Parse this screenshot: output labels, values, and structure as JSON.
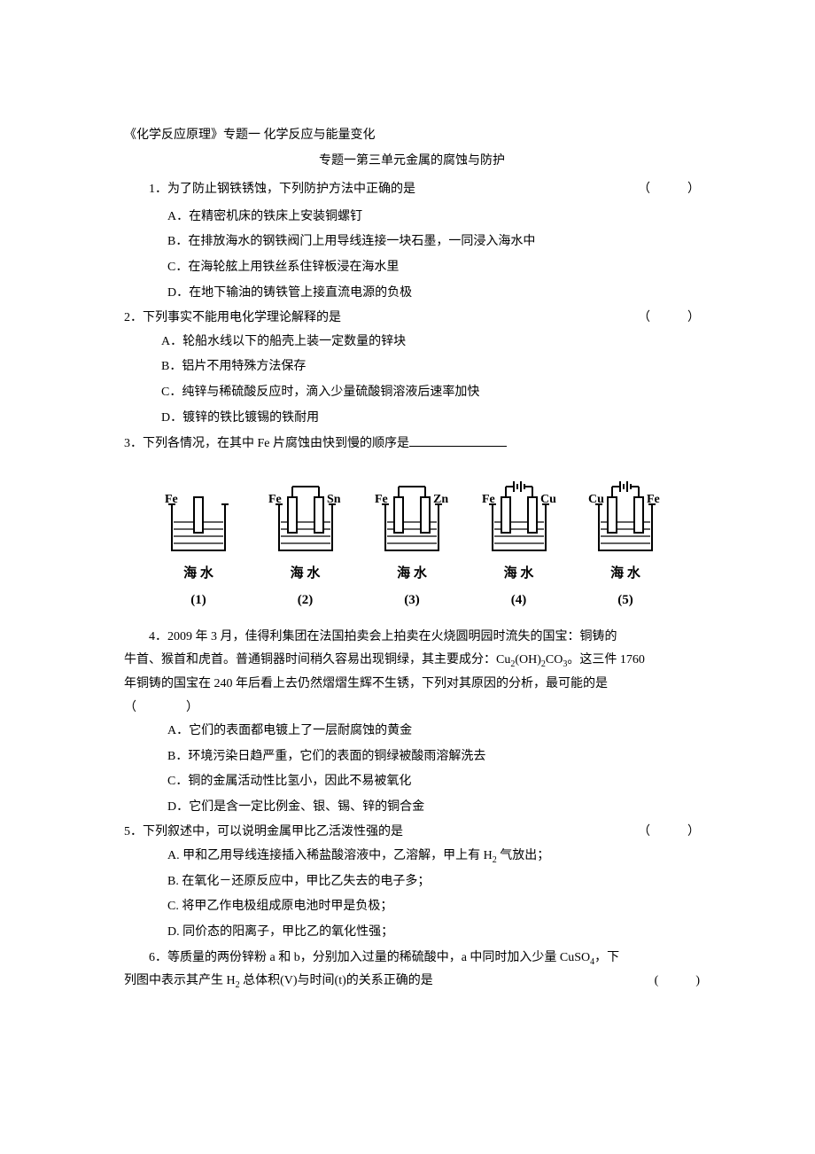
{
  "title": "《化学反应原理》专题一 化学反应与能量变化",
  "subtitle": "专题一第三单元金属的腐蚀与防护",
  "paren_marker": "（　　　）",
  "paren_marker_alt": "(　　　)",
  "q1": {
    "stem": "1．为了防止钢铁锈蚀，下列防护方法中正确的是",
    "A": "A．在精密机床的铁床上安装铜螺钉",
    "B": "B．在排放海水的钢铁阀门上用导线连接一块石墨，一同浸入海水中",
    "C": "C．在海轮舷上用铁丝系住锌板浸在海水里",
    "D": "D．在地下输油的铸铁管上接直流电源的负极"
  },
  "q2": {
    "stem": "2．下列事实不能用电化学理论解释的是",
    "A": "A．轮船水线以下的船壳上装一定数量的锌块",
    "B": "B．铝片不用特殊方法保存",
    "C": "C．纯锌与稀硫酸反应时，滴入少量硫酸铜溶液后速率加快",
    "D": "D．镀锌的铁比镀锡的铁耐用"
  },
  "q3": {
    "stem_pre": "3．下列各情况，在其中 Fe 片腐蚀由快到慢的顺序是"
  },
  "figures": {
    "seawater_label": "海 水",
    "items": [
      {
        "left": "Fe",
        "right": "",
        "has_battery": false,
        "num": "(1)"
      },
      {
        "left": "Fe",
        "right": "Sn",
        "has_battery": false,
        "num": "(2)"
      },
      {
        "left": "Fe",
        "right": "Zn",
        "has_battery": false,
        "num": "(3)"
      },
      {
        "left": "Fe",
        "right": "Cu",
        "has_battery": true,
        "num": "(4)"
      },
      {
        "left": "Cu",
        "right": "Fe",
        "has_battery": true,
        "num": "(5)"
      }
    ],
    "colors": {
      "stroke": "#000000",
      "fill": "#ffffff"
    }
  },
  "q4": {
    "line1": "　　4．2009 年 3 月，佳得利集团在法国拍卖会上拍卖在火烧圆明园时流失的国宝：铜铸的",
    "line2_pre": "牛首、猴首和虎首。普通铜器时间稍久容易出现铜绿，其主要成分：Cu",
    "line2_mid": "(OH)",
    "line2_co": "CO",
    "line2_post": "。这三件 1760",
    "line3": "年铜铸的国宝在 240 年后看上去仍然熠熠生辉不生锈，下列对其原因的分析，最可能的是",
    "line4": "（　　　　）",
    "A": "A．它们的表面都电镀上了一层耐腐蚀的黄金",
    "B": "B．环境污染日趋严重，它们的表面的铜绿被酸雨溶解洗去",
    "C": "C．铜的金属活动性比氢小，因此不易被氧化",
    "D": "D．它们是含一定比例金、银、锡、锌的铜合金"
  },
  "q5": {
    "stem": "5．下列叙述中，可以说明金属甲比乙活泼性强的是",
    "A_pre": "A. 甲和乙用导线连接插入稀盐酸溶液中，乙溶解，甲上有 H",
    "A_post": " 气放出；",
    "B": "B. 在氧化－还原反应中，甲比乙失去的电子多；",
    "C": "C. 将甲乙作电极组成原电池时甲是负极；",
    "D": "D. 同价态的阳离子，甲比乙的氧化性强；"
  },
  "q6": {
    "line1_pre": "　　6．等质量的两份锌粉 a 和 b，分别加入过量的稀硫酸中，a 中同时加入少量 CuSO",
    "line1_post": "，下",
    "line2_pre": "列图中表示其产生 H",
    "line2_post": " 总体积(V)与时间(t)的关系正确的是"
  }
}
